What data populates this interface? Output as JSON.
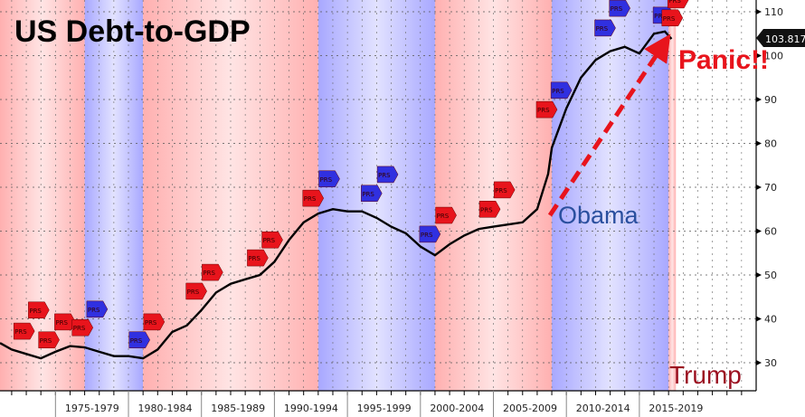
{
  "chart_data": {
    "type": "line",
    "title": "US Debt-to-GDP",
    "annotations": {
      "obama": "Obama",
      "panic": "Panic!!",
      "trump": "Trump",
      "last_value": "103.817",
      "flag_label": "PRS"
    },
    "ylim": [
      24,
      113
    ],
    "xlim": [
      1971.2,
      2023
    ],
    "y_ticks": [
      30,
      40,
      50,
      60,
      70,
      80,
      90,
      100,
      110
    ],
    "x_tick_labels": [
      {
        "label": "1975-1979",
        "start": 1975
      },
      {
        "label": "1980-1984",
        "start": 1980
      },
      {
        "label": "1985-1989",
        "start": 1985
      },
      {
        "label": "1990-1994",
        "start": 1990
      },
      {
        "label": "1995-1999",
        "start": 1995
      },
      {
        "label": "2000-2004",
        "start": 2000
      },
      {
        "label": "2005-2009",
        "start": 2005
      },
      {
        "label": "2010-2014",
        "start": 2010
      },
      {
        "label": "2015-2019",
        "start": 2015
      }
    ],
    "grid": true,
    "colors": {
      "line": "#000000",
      "republican": "#ff9a9a",
      "democrat": "#9a9aff",
      "accent": "#e8141c",
      "obama_text": "#2a4f9e",
      "trump_text": "#9b1020"
    },
    "party_bands": [
      {
        "party": "republican",
        "from": 1969,
        "to": 1977
      },
      {
        "party": "democrat",
        "from": 1977,
        "to": 1981
      },
      {
        "party": "republican",
        "from": 1981,
        "to": 1993
      },
      {
        "party": "democrat",
        "from": 1993,
        "to": 2001
      },
      {
        "party": "republican",
        "from": 2001,
        "to": 2009
      },
      {
        "party": "democrat",
        "from": 2009,
        "to": 2017
      },
      {
        "party": "republican",
        "from": 2017,
        "to": 2017.5
      }
    ],
    "series": [
      {
        "x": [
          1971.2,
          1972,
          1973,
          1974,
          1975,
          1976,
          1977,
          1978,
          1979,
          1980,
          1981,
          1982,
          1983,
          1984,
          1985,
          1986,
          1987,
          1988,
          1989,
          1990,
          1991,
          1992,
          1993,
          1994,
          1995,
          1996,
          1997,
          1998,
          1999,
          2000,
          2001,
          2002,
          2003,
          2004,
          2005,
          2006,
          2007,
          2008,
          2008.75,
          2009,
          2010,
          2011,
          2012,
          2013,
          2014,
          2015,
          2016,
          2016.75,
          2017.2
        ],
        "y": [
          34.5,
          33,
          32,
          31,
          32.5,
          33.8,
          33.5,
          32.5,
          31.5,
          31.5,
          31,
          33,
          37,
          38.5,
          42,
          46,
          48,
          49,
          50,
          53,
          58,
          62,
          64,
          65,
          64.5,
          64.5,
          63,
          61,
          59.5,
          56.5,
          54.5,
          57,
          59,
          60.5,
          61,
          61.5,
          62,
          65,
          73,
          79,
          88,
          95,
          99,
          101,
          102,
          100.5,
          105,
          105.5,
          103.8
        ]
      }
    ],
    "flags": [
      {
        "year": 1972.7,
        "value": 37.2,
        "party": "republican"
      },
      {
        "year": 1973.7,
        "value": 42,
        "party": "republican"
      },
      {
        "year": 1974.4,
        "value": 35.2,
        "party": "republican"
      },
      {
        "year": 1975.5,
        "value": 39.3,
        "party": "republican"
      },
      {
        "year": 1976.7,
        "value": 38,
        "party": "republican"
      },
      {
        "year": 1977.7,
        "value": 42.2,
        "party": "democrat"
      },
      {
        "year": 1980.6,
        "value": 35.2,
        "party": "democrat"
      },
      {
        "year": 1981.6,
        "value": 39.3,
        "party": "republican"
      },
      {
        "year": 1984.5,
        "value": 46.3,
        "party": "republican"
      },
      {
        "year": 1985.6,
        "value": 50.6,
        "party": "republican"
      },
      {
        "year": 1988.7,
        "value": 53.9,
        "party": "republican"
      },
      {
        "year": 1989.7,
        "value": 58,
        "party": "republican"
      },
      {
        "year": 1992.5,
        "value": 67.5,
        "party": "republican"
      },
      {
        "year": 1993.6,
        "value": 71.9,
        "party": "democrat"
      },
      {
        "year": 1996.5,
        "value": 68.6,
        "party": "democrat"
      },
      {
        "year": 1997.6,
        "value": 72.9,
        "party": "democrat"
      },
      {
        "year": 2000.5,
        "value": 59.3,
        "party": "democrat"
      },
      {
        "year": 2001.6,
        "value": 63.6,
        "party": "republican"
      },
      {
        "year": 2004.6,
        "value": 65,
        "party": "republican"
      },
      {
        "year": 2005.6,
        "value": 69.4,
        "party": "republican"
      },
      {
        "year": 2008.5,
        "value": 87.7,
        "party": "republican"
      },
      {
        "year": 2009.5,
        "value": 92.1,
        "party": "democrat"
      },
      {
        "year": 2012.5,
        "value": 106.3,
        "party": "democrat"
      },
      {
        "year": 2013.5,
        "value": 110.8,
        "party": "democrat"
      },
      {
        "year": 2016.5,
        "value": 109.2,
        "party": "democrat"
      },
      {
        "year": 2017.1,
        "value": 108.6,
        "party": "republican"
      },
      {
        "year": 2017.5,
        "value": 112.7,
        "party": "republican"
      }
    ]
  }
}
